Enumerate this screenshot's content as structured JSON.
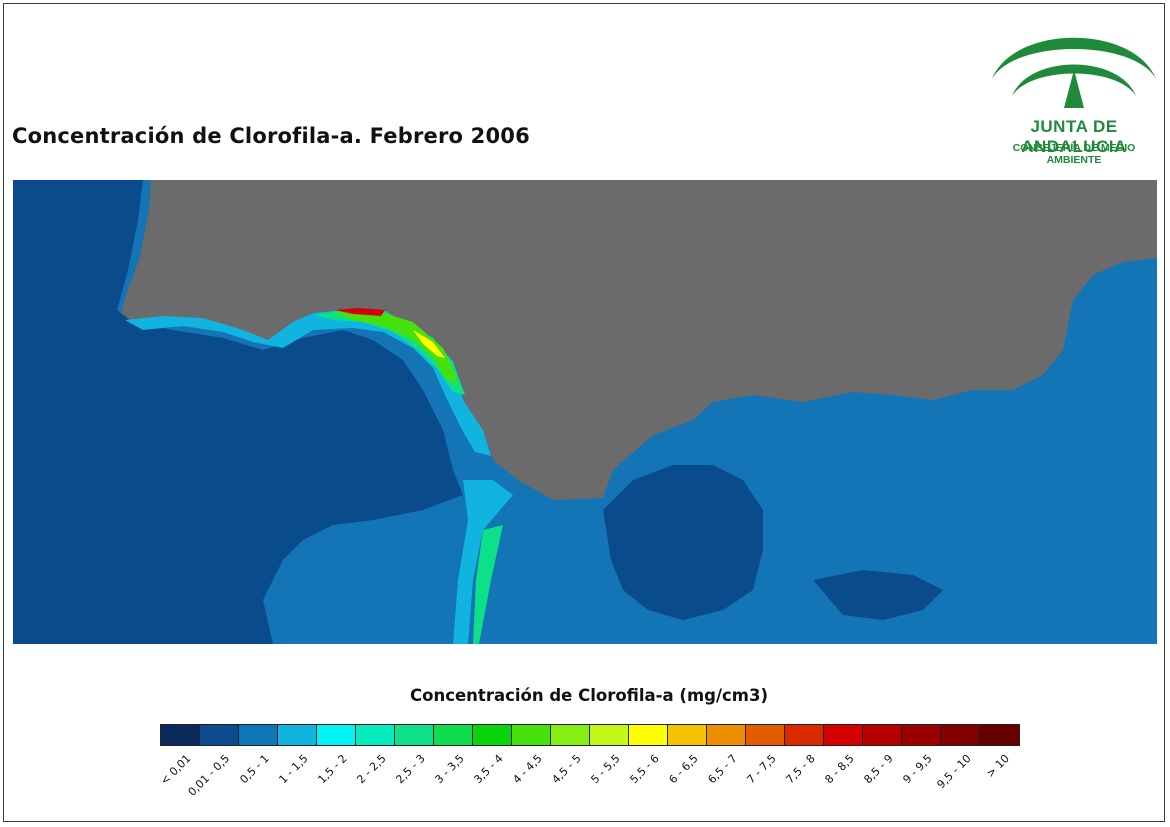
{
  "title": "Concentración de Clorofila-a. Febrero 2006",
  "logo": {
    "name": "JUNTA DE ANDALUCIA",
    "subtitle": "CONSEJERÍA DE MEDIO AMBIENTE",
    "color": "#1f8a3a"
  },
  "map": {
    "land_color": "#6b6b6b",
    "sea_low_color": "#0a4b8c",
    "sea_mid_color": "#1374b6"
  },
  "legend": {
    "title": "Concentración de Clorofila-a (mg/cm3)",
    "classes": [
      {
        "label": "< 0,01",
        "color": "#0b2a5c"
      },
      {
        "label": "0,01 - 0,5",
        "color": "#0c4b8d"
      },
      {
        "label": "0,5 - 1",
        "color": "#0f76b8"
      },
      {
        "label": "1 - 1,5",
        "color": "#10b4de"
      },
      {
        "label": "1,5 - 2",
        "color": "#00f4f4"
      },
      {
        "label": "2 - 2,5",
        "color": "#06ecbe"
      },
      {
        "label": "2,5 - 3",
        "color": "#0ee08a"
      },
      {
        "label": "3 - 3,5",
        "color": "#0fdc4f"
      },
      {
        "label": "3,5 - 4",
        "color": "#0ad40e"
      },
      {
        "label": "4 - 4,5",
        "color": "#46e00c"
      },
      {
        "label": "4,5 - 5",
        "color": "#86ee10"
      },
      {
        "label": "5 - 5,5",
        "color": "#c4f81a"
      },
      {
        "label": "5,5 - 6",
        "color": "#ffff00"
      },
      {
        "label": "6 - 6,5",
        "color": "#f4c400"
      },
      {
        "label": "6,5 - 7",
        "color": "#ec9000"
      },
      {
        "label": "7 - 7,5",
        "color": "#e45c00"
      },
      {
        "label": "7,5 - 8",
        "color": "#dc2a00"
      },
      {
        "label": "8 - 8,5",
        "color": "#d40000"
      },
      {
        "label": "8,5 - 9",
        "color": "#b80000"
      },
      {
        "label": "9 - 9,5",
        "color": "#9a0000"
      },
      {
        "label": "9,5 - 10",
        "color": "#820000"
      },
      {
        "label": "> 10",
        "color": "#660000"
      }
    ]
  }
}
